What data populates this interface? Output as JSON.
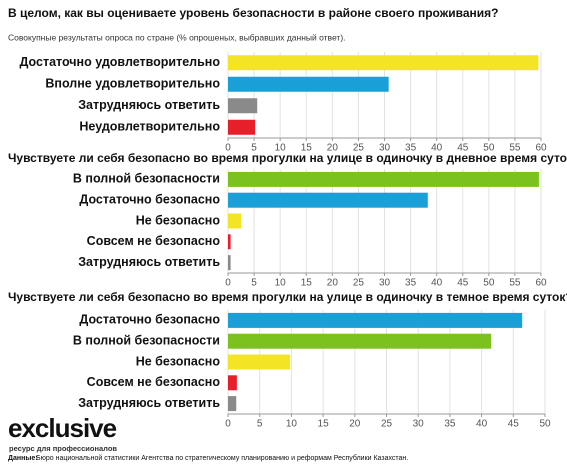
{
  "chart_data": [
    {
      "type": "bar",
      "orientation": "horizontal",
      "title": "В целом, как вы оцениваете уровень безопасности в районе своего проживания?",
      "subtitle": "Совокупные результаты опроса по стране (% опрошеных, выбравших данный ответ).",
      "categories": [
        "Достаточно удовлетворительно",
        "Вполне удовлетворительно",
        "Затрудняюсь ответить",
        "Неудовлетворительно"
      ],
      "values": [
        59.5,
        30.8,
        5.6,
        5.2
      ],
      "colors": [
        "#f3e525",
        "#1a9fd6",
        "#8a8a8a",
        "#e61f2b"
      ],
      "xlim": [
        0,
        60
      ],
      "xticks": [
        0,
        5,
        10,
        15,
        20,
        25,
        30,
        35,
        40,
        45,
        50,
        55,
        60
      ],
      "grid": true
    },
    {
      "type": "bar",
      "orientation": "horizontal",
      "title": "Чувствуете ли себя безопасно во время прогулки на улице в одиночку в дневное время суток?",
      "categories": [
        "В полной безопасности",
        "Достаточно безопасно",
        "Не безопасно",
        "Совсем не безопасно",
        "Затрудняюсь ответить"
      ],
      "values": [
        59.6,
        38.3,
        2.5,
        0.5,
        0.5
      ],
      "colors": [
        "#7cc21f",
        "#1a9fd6",
        "#f3e525",
        "#e61f2b",
        "#8a8a8a"
      ],
      "xlim": [
        0,
        60
      ],
      "xticks": [
        0,
        5,
        10,
        15,
        20,
        25,
        30,
        35,
        40,
        45,
        50,
        55,
        60
      ],
      "grid": true
    },
    {
      "type": "bar",
      "orientation": "horizontal",
      "title": "Чувствуете ли себя безопасно во время прогулки на улице в одиночку в темное время суток?",
      "categories": [
        "Достаточно безопасно",
        "В полной безопасности",
        "Не безопасно",
        "Совсем не безопасно",
        "Затрудняюсь ответить"
      ],
      "values": [
        46.4,
        41.5,
        9.8,
        1.4,
        1.3
      ],
      "colors": [
        "#1a9fd6",
        "#7cc21f",
        "#f3e525",
        "#e61f2b",
        "#8a8a8a"
      ],
      "xlim": [
        0,
        50
      ],
      "xticks": [
        0,
        5,
        10,
        15,
        20,
        25,
        30,
        35,
        40,
        45,
        50
      ],
      "grid": true
    }
  ],
  "logo": {
    "name": "exclusive",
    "tagline": "ресурс для профессионалов"
  },
  "source": {
    "label": "Данные:",
    "text": "Бюро национальной статистики Агентства по стратегическому планированию и реформам Республики Казахстан."
  }
}
